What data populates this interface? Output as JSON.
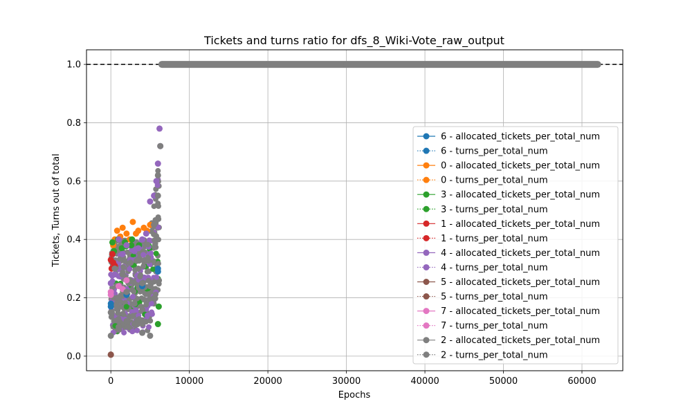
{
  "chart_data": {
    "type": "scatter",
    "title": "Tickets and turns ratio for dfs_8_Wiki-Vote_raw_output",
    "xlabel": "Epochs",
    "ylabel": "Tickets, Turns out of total",
    "xlim": [
      -3100,
      65200
    ],
    "ylim": [
      -0.05,
      1.05
    ],
    "xticks": [
      0,
      10000,
      20000,
      30000,
      40000,
      50000,
      60000
    ],
    "yticks": [
      0.0,
      0.2,
      0.4,
      0.6,
      0.8,
      1.0
    ],
    "xtick_labels": [
      "0",
      "10000",
      "20000",
      "30000",
      "40000",
      "50000",
      "60000"
    ],
    "ytick_labels": [
      "0.0",
      "0.2",
      "0.4",
      "0.6",
      "0.8",
      "1.0"
    ],
    "grid": true,
    "legend_position": "right",
    "reference_line": {
      "y": 1.0,
      "style": "dashed",
      "color": "#000000"
    },
    "series": [
      {
        "name": "6 - allocated_tickets_per_total_num",
        "color": "#1f77b4",
        "x": [
          0,
          2000,
          4000,
          6000
        ],
        "y": [
          0.18,
          0.22,
          0.25,
          0.3
        ]
      },
      {
        "name": "6 - turns_per_total_num",
        "color": "#1f77b4",
        "x": [
          0,
          2000,
          4000,
          6000
        ],
        "y": [
          0.17,
          0.21,
          0.24,
          0.29
        ]
      },
      {
        "name": "0 - allocated_tickets_per_total_num",
        "color": "#ff7f0e",
        "x": [
          300,
          800,
          1500,
          2000,
          2800,
          3500,
          4200,
          5000
        ],
        "y": [
          0.38,
          0.43,
          0.44,
          0.42,
          0.46,
          0.43,
          0.44,
          0.45
        ]
      },
      {
        "name": "0 - turns_per_total_num",
        "color": "#ff7f0e",
        "x": [
          500,
          1200,
          2400,
          3200,
          4600
        ],
        "y": [
          0.4,
          0.41,
          0.4,
          0.42,
          0.43
        ]
      },
      {
        "name": "3 - allocated_tickets_per_total_num",
        "color": "#2ca02c",
        "x": [
          200,
          900,
          1800,
          2700,
          3600,
          6000
        ],
        "y": [
          0.39,
          0.4,
          0.39,
          0.4,
          0.38,
          0.11
        ]
      },
      {
        "name": "3 - turns_per_total_num",
        "color": "#2ca02c",
        "x": [
          400,
          1400,
          2600,
          6100
        ],
        "y": [
          0.36,
          0.37,
          0.38,
          0.17
        ]
      },
      {
        "name": "1 - allocated_tickets_per_total_num",
        "color": "#d62728",
        "x": [
          0,
          200,
          500
        ],
        "y": [
          0.33,
          0.35,
          0.31
        ]
      },
      {
        "name": "1 - turns_per_total_num",
        "color": "#d62728",
        "x": [
          100,
          300
        ],
        "y": [
          0.3,
          0.32
        ]
      },
      {
        "name": "4 - allocated_tickets_per_total_num",
        "color": "#9467bd",
        "x": [
          0,
          1000,
          2000,
          3000,
          4000,
          5000,
          5500,
          6000,
          6200
        ],
        "y": [
          0.25,
          0.4,
          0.38,
          0.36,
          0.4,
          0.53,
          0.55,
          0.66,
          0.78
        ]
      },
      {
        "name": "4 - turns_per_total_num",
        "color": "#9467bd",
        "x": [
          500,
          1500,
          2500,
          3500,
          4500,
          5800,
          6300
        ],
        "y": [
          0.28,
          0.35,
          0.33,
          0.37,
          0.42,
          0.6,
          0.72
        ]
      },
      {
        "name": "5 - allocated_tickets_per_total_num",
        "color": "#8c564b",
        "x": [
          0
        ],
        "y": [
          0.005
        ]
      },
      {
        "name": "5 - turns_per_total_num",
        "color": "#8c564b",
        "x": [
          0
        ],
        "y": [
          0.005
        ]
      },
      {
        "name": "7 - allocated_tickets_per_total_num",
        "color": "#e377c2",
        "x": [
          0,
          1000,
          2000
        ],
        "y": [
          0.22,
          0.24,
          0.26
        ]
      },
      {
        "name": "7 - turns_per_total_num",
        "color": "#e377c2",
        "x": [
          0,
          1500
        ],
        "y": [
          0.21,
          0.23
        ]
      },
      {
        "name": "2 - allocated_tickets_per_total_num",
        "color": "#7f7f7f",
        "x": [
          0,
          500,
          1000,
          1500,
          2000,
          2500,
          3000,
          3500,
          4000,
          4500,
          5000,
          5500,
          6000,
          6300,
          6500,
          10000,
          20000,
          30000,
          40000,
          50000,
          62000
        ],
        "y": [
          0.07,
          0.3,
          0.1,
          0.28,
          0.12,
          0.32,
          0.11,
          0.3,
          0.08,
          0.33,
          0.07,
          0.45,
          0.62,
          0.72,
          1.0,
          1.0,
          1.0,
          1.0,
          1.0,
          1.0,
          1.0
        ]
      },
      {
        "name": "2 - turns_per_total_num",
        "color": "#7f7f7f",
        "x": [
          0,
          1000,
          2000,
          3000,
          4000,
          5000,
          6000,
          6500,
          62000
        ],
        "y": [
          0.15,
          0.2,
          0.22,
          0.18,
          0.25,
          0.24,
          0.55,
          1.0,
          1.0
        ]
      }
    ]
  }
}
